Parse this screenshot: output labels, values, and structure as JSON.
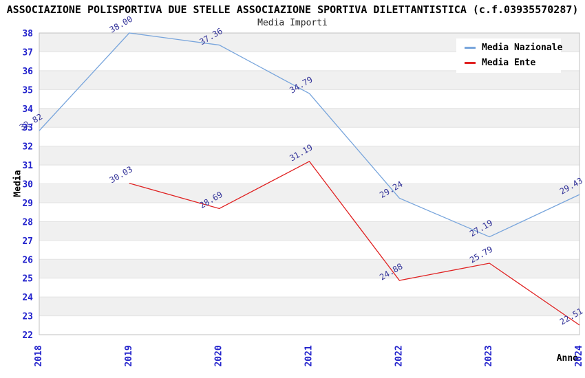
{
  "chart_data": {
    "type": "line",
    "title": "ASSOCIAZIONE POLISPORTIVA DUE STELLE ASSOCIAZIONE SPORTIVA DILETTANTISTICA (c.f.03935570287)",
    "subtitle": "Media Importi",
    "xlabel": "Anno",
    "ylabel": "Media",
    "x": [
      2018,
      2019,
      2020,
      2021,
      2022,
      2023,
      2024
    ],
    "series": [
      {
        "name": "Media Nazionale",
        "color": "#78a5dc",
        "values": [
          32.82,
          38.0,
          37.36,
          34.79,
          29.24,
          27.19,
          29.43
        ]
      },
      {
        "name": "Media Ente",
        "color": "#e02020",
        "values": [
          null,
          30.03,
          28.69,
          31.19,
          24.88,
          25.79,
          22.51
        ]
      }
    ],
    "ylim": [
      22,
      38
    ],
    "ytick_step": 1,
    "legend_position": "top-right",
    "grid": "alternating-horizontal-bands",
    "colors": {
      "tick_label": "#2222cc",
      "data_label": "#333399",
      "band": "#f0f0f0",
      "gridline": "#e2e2e2",
      "border": "#c0c0c0"
    }
  }
}
